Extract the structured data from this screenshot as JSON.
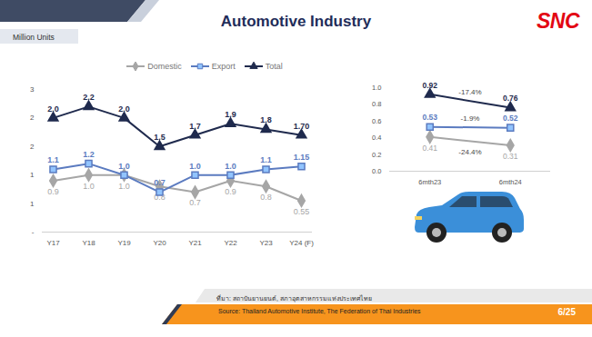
{
  "title": "Automotive Industry",
  "logo": "SNC",
  "chart_data": [
    {
      "type": "line",
      "y_label": "Million Units",
      "categories": [
        "Y17",
        "Y18",
        "Y19",
        "Y20",
        "Y21",
        "Y22",
        "Y23",
        "Y24 (F)"
      ],
      "series": [
        {
          "name": "Domestic",
          "color": "#a6a6a6",
          "marker": "diamond",
          "values": [
            0.9,
            1.0,
            1.0,
            0.8,
            0.7,
            0.9,
            0.8,
            0.55
          ],
          "value_labels": [
            "0.9",
            "1.0",
            "1.0",
            "0.8",
            "0.7",
            "0.9",
            "0.8",
            "0.55"
          ]
        },
        {
          "name": "Export",
          "color": "#5b7bc0",
          "marker": "square",
          "values": [
            1.1,
            1.2,
            1.0,
            0.7,
            1.0,
            1.0,
            1.1,
            1.15
          ],
          "value_labels": [
            "1.1",
            "1.2",
            "1.0",
            "0.7",
            "1.0",
            "1.0",
            "1.1",
            "1.15"
          ]
        },
        {
          "name": "Total",
          "color": "#1f2a4d",
          "marker": "triangle",
          "values": [
            2.0,
            2.2,
            2.0,
            1.5,
            1.7,
            1.9,
            1.8,
            1.7
          ],
          "value_labels": [
            "2.0",
            "2.2",
            "2.0",
            "1.5",
            "1.7",
            "1.9",
            "1.8",
            "1.70"
          ]
        }
      ],
      "ylim": [
        0,
        2.5
      ],
      "yticks": [
        {
          "value": 0,
          "label": "-"
        },
        {
          "value": 0.5,
          "label": "1"
        },
        {
          "value": 1,
          "label": "1"
        },
        {
          "value": 1.5,
          "label": "2"
        },
        {
          "value": 2,
          "label": "2"
        },
        {
          "value": 2.5,
          "label": "3"
        }
      ],
      "grid": false,
      "legend": "top",
      "data_labels": true
    },
    {
      "type": "line",
      "categories": [
        "6mth23",
        "6mth24"
      ],
      "series": [
        {
          "name": "Domestic",
          "color": "#a6a6a6",
          "marker": "diamond",
          "values": [
            0.41,
            0.31
          ]
        },
        {
          "name": "Export",
          "color": "#5b7bc0",
          "marker": "square",
          "values": [
            0.53,
            0.52
          ]
        },
        {
          "name": "Total",
          "color": "#1f2a4d",
          "marker": "triangle",
          "values": [
            0.92,
            0.76
          ]
        }
      ],
      "ylim": [
        0,
        1
      ],
      "yticks": [
        {
          "value": 0,
          "label": "0.0"
        },
        0.2,
        0.4,
        0.6,
        0.8,
        {
          "value": 1,
          "label": "1.0"
        }
      ],
      "grid": false,
      "data_labels": true,
      "annotations": [
        {
          "text": "-17.4%",
          "series": "Total"
        },
        {
          "text": "-1.9%",
          "series": "Export"
        },
        {
          "text": "-24.4%",
          "series": "Domestic"
        }
      ]
    }
  ],
  "source_th": "ที่มา: สถาบันยานยนต์, สภาอุตสาหกรรมแห่งประเทศไทย",
  "source": "Source: Thailand Automotive Institute, The Federation of Thai Industries",
  "page": "6/25"
}
